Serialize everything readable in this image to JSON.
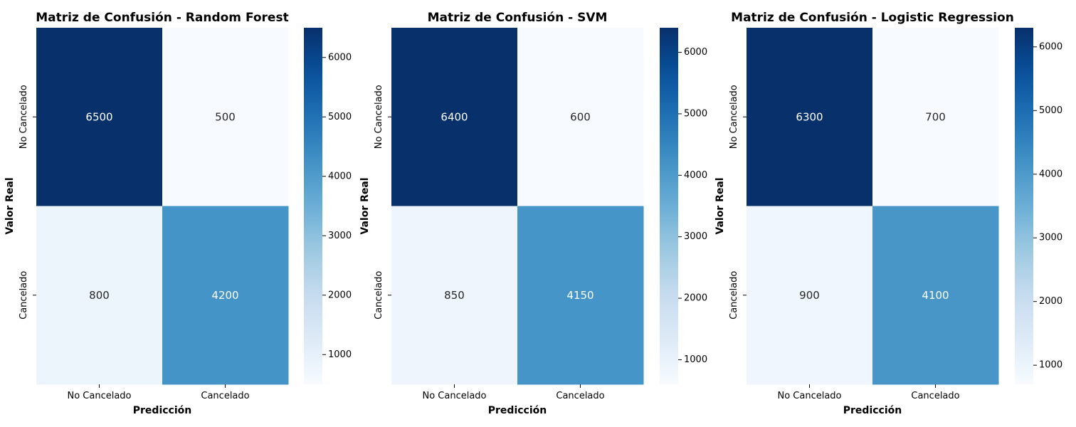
{
  "chart_data": [
    {
      "type": "heatmap",
      "title": "Matriz de Confusión - Random Forest",
      "xlabel": "Predicción",
      "ylabel": "Valor Real",
      "x_categories": [
        "No Cancelado",
        "Cancelado"
      ],
      "y_categories": [
        "No Cancelado",
        "Cancelado"
      ],
      "values": [
        [
          6500,
          500
        ],
        [
          800,
          4200
        ]
      ],
      "colormap": "Blues",
      "colorbar": {
        "range": [
          500,
          6500
        ],
        "ticks": [
          1000,
          2000,
          3000,
          4000,
          5000,
          6000
        ]
      }
    },
    {
      "type": "heatmap",
      "title": "Matriz de Confusión - SVM",
      "xlabel": "Predicción",
      "ylabel": "Valor Real",
      "x_categories": [
        "No Cancelado",
        "Cancelado"
      ],
      "y_categories": [
        "No Cancelado",
        "Cancelado"
      ],
      "values": [
        [
          6400,
          600
        ],
        [
          850,
          4150
        ]
      ],
      "colormap": "Blues",
      "colorbar": {
        "range": [
          600,
          6400
        ],
        "ticks": [
          1000,
          2000,
          3000,
          4000,
          5000,
          6000
        ]
      }
    },
    {
      "type": "heatmap",
      "title": "Matriz de Confusión - Logistic Regression",
      "xlabel": "Predicción",
      "ylabel": "Valor Real",
      "x_categories": [
        "No Cancelado",
        "Cancelado"
      ],
      "y_categories": [
        "No Cancelado",
        "Cancelado"
      ],
      "values": [
        [
          6300,
          700
        ],
        [
          900,
          4100
        ]
      ],
      "colormap": "Blues",
      "colorbar": {
        "range": [
          700,
          6300
        ],
        "ticks": [
          1000,
          2000,
          3000,
          4000,
          5000,
          6000
        ]
      }
    }
  ],
  "colors": {
    "text_light": "#ffffff",
    "text_dark": "#262626"
  }
}
